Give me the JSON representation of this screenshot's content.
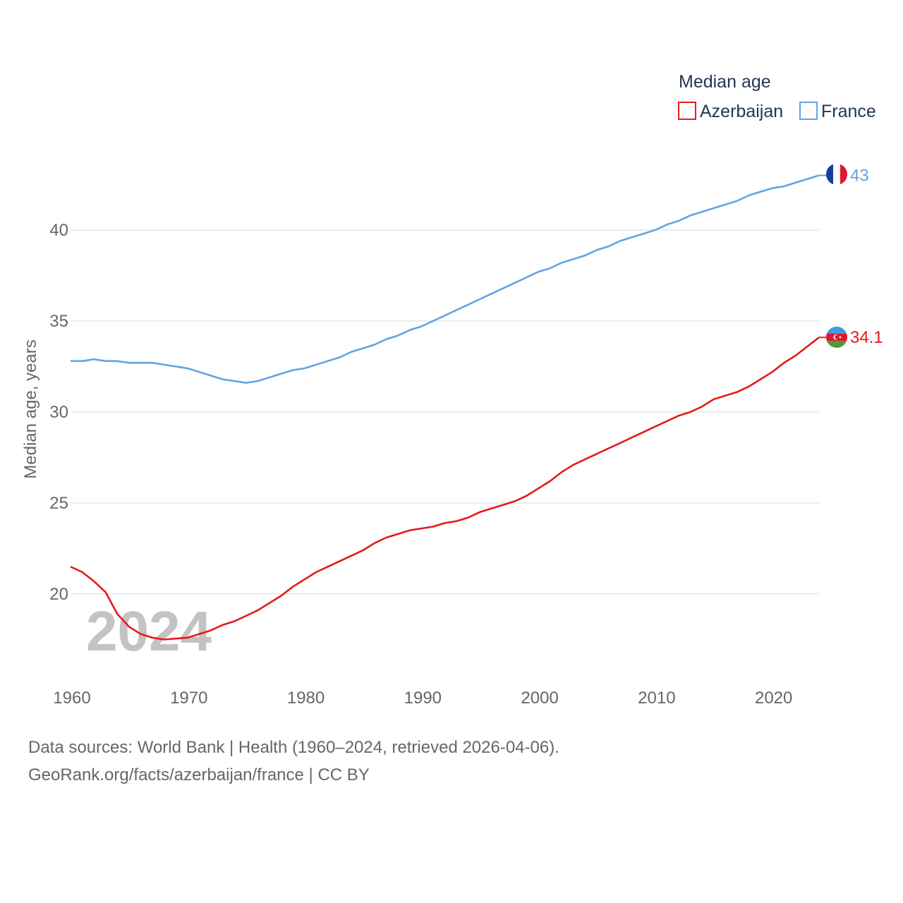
{
  "footer": {
    "sources": "Data sources: World Bank | Health (1960–2024, retrieved 2026-04-06).",
    "link": "GeoRank.org/facts/azerbaijan/france | CC BY"
  },
  "chart_data": {
    "type": "line",
    "title": "",
    "legend_title": "Median age",
    "legend_position": "top-right",
    "xlabel": "",
    "ylabel": "Median age, years",
    "xlim": [
      1960,
      2024
    ],
    "ylim": [
      16.5,
      45
    ],
    "grid": true,
    "x_ticks": [
      1960,
      1970,
      1980,
      1990,
      2000,
      2010,
      2020
    ],
    "y_ticks": [
      20,
      25,
      30,
      35,
      40
    ],
    "watermark_year": "2024",
    "x": [
      1960,
      1961,
      1962,
      1963,
      1964,
      1965,
      1966,
      1967,
      1968,
      1969,
      1970,
      1971,
      1972,
      1973,
      1974,
      1975,
      1976,
      1977,
      1978,
      1979,
      1980,
      1981,
      1982,
      1983,
      1984,
      1985,
      1986,
      1987,
      1988,
      1989,
      1990,
      1991,
      1992,
      1993,
      1994,
      1995,
      1996,
      1997,
      1998,
      1999,
      2000,
      2001,
      2002,
      2003,
      2004,
      2005,
      2006,
      2007,
      2008,
      2009,
      2010,
      2011,
      2012,
      2013,
      2014,
      2015,
      2016,
      2017,
      2018,
      2019,
      2020,
      2021,
      2022,
      2023,
      2024
    ],
    "series": [
      {
        "name": "Azerbaijan",
        "color": "#e41a1c",
        "flag": "azerbaijan-flag",
        "end_label": "34.1",
        "values": [
          21.5,
          21.2,
          20.7,
          20.1,
          18.9,
          18.2,
          17.8,
          17.6,
          17.5,
          17.55,
          17.6,
          17.8,
          18.0,
          18.3,
          18.5,
          18.8,
          19.1,
          19.5,
          19.9,
          20.4,
          20.8,
          21.2,
          21.5,
          21.8,
          22.1,
          22.4,
          22.8,
          23.1,
          23.3,
          23.5,
          23.6,
          23.7,
          23.9,
          24.0,
          24.2,
          24.5,
          24.7,
          24.9,
          25.1,
          25.4,
          25.8,
          26.2,
          26.7,
          27.1,
          27.4,
          27.7,
          28.0,
          28.3,
          28.6,
          28.9,
          29.2,
          29.5,
          29.8,
          30.0,
          30.3,
          30.7,
          30.9,
          31.1,
          31.4,
          31.8,
          32.2,
          32.7,
          33.1,
          33.6,
          34.1
        ]
      },
      {
        "name": "France",
        "color": "#64a4e0",
        "flag": "france-flag",
        "end_label": "43",
        "values": [
          32.8,
          32.8,
          32.9,
          32.8,
          32.8,
          32.7,
          32.7,
          32.7,
          32.6,
          32.5,
          32.4,
          32.2,
          32.0,
          31.8,
          31.7,
          31.6,
          31.7,
          31.9,
          32.1,
          32.3,
          32.4,
          32.6,
          32.8,
          33.0,
          33.3,
          33.5,
          33.7,
          34.0,
          34.2,
          34.5,
          34.7,
          35.0,
          35.3,
          35.6,
          35.9,
          36.2,
          36.5,
          36.8,
          37.1,
          37.4,
          37.7,
          37.9,
          38.2,
          38.4,
          38.6,
          38.9,
          39.1,
          39.4,
          39.6,
          39.8,
          40.0,
          40.3,
          40.5,
          40.8,
          41.0,
          41.2,
          41.4,
          41.6,
          41.9,
          42.1,
          42.3,
          42.4,
          42.6,
          42.8,
          43.0
        ]
      }
    ]
  }
}
